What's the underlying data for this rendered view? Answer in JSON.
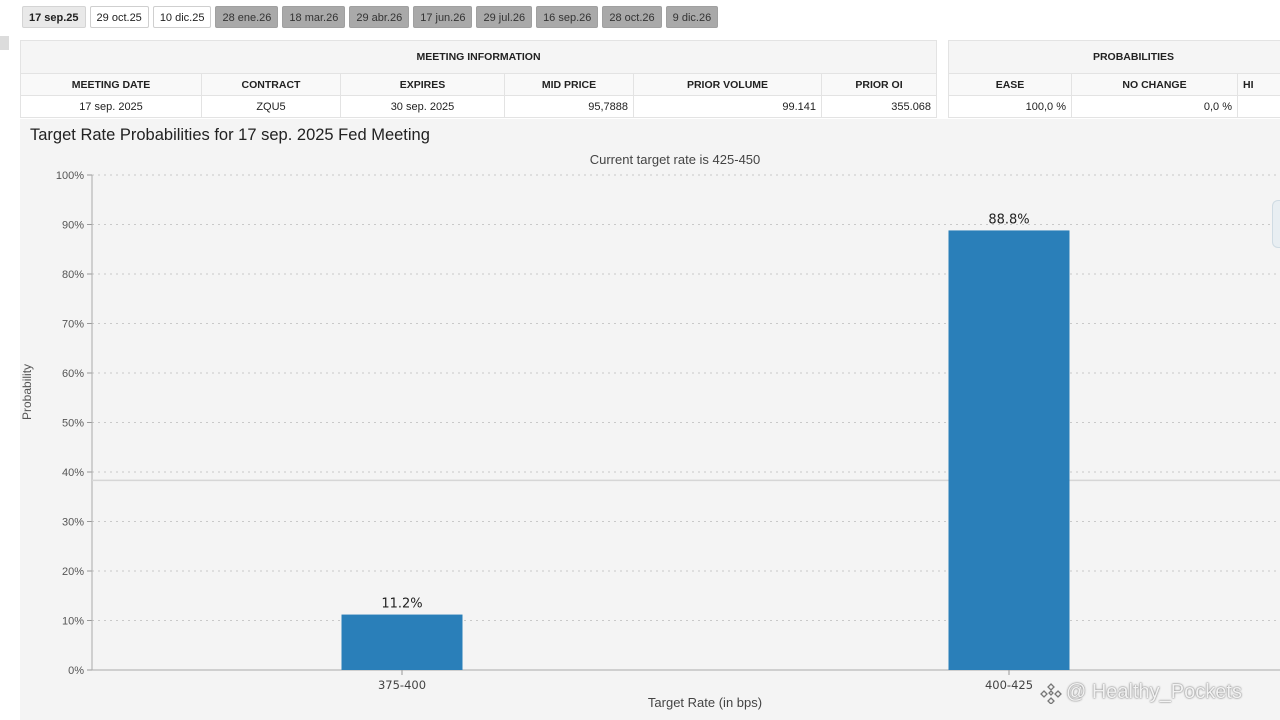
{
  "tabs": [
    {
      "label": "17 sep.25",
      "state": "active"
    },
    {
      "label": "29 oct.25",
      "state": "normal"
    },
    {
      "label": "10 dic.25",
      "state": "normal"
    },
    {
      "label": "28 ene.26",
      "state": "future"
    },
    {
      "label": "18 mar.26",
      "state": "future"
    },
    {
      "label": "29 abr.26",
      "state": "future"
    },
    {
      "label": "17 jun.26",
      "state": "future"
    },
    {
      "label": "29 jul.26",
      "state": "future"
    },
    {
      "label": "16 sep.26",
      "state": "future"
    },
    {
      "label": "28 oct.26",
      "state": "future"
    },
    {
      "label": "9 dic.26",
      "state": "future"
    }
  ],
  "meeting_info": {
    "title": "MEETING INFORMATION",
    "headers": [
      "MEETING DATE",
      "CONTRACT",
      "EXPIRES",
      "MID PRICE",
      "PRIOR VOLUME",
      "PRIOR OI"
    ],
    "row": [
      "17 sep. 2025",
      "ZQU5",
      "30 sep. 2025",
      "95,7888",
      "99.141",
      "355.068"
    ]
  },
  "probabilities": {
    "title": "PROBABILITIES",
    "headers": [
      "EASE",
      "NO CHANGE",
      "HI"
    ],
    "row": [
      "100,0 %",
      "0,0 %",
      ""
    ]
  },
  "chart_data": {
    "type": "bar",
    "title": "Target Rate Probabilities for 17 sep. 2025 Fed Meeting",
    "subtitle": "Current target rate is 425-450",
    "xlabel": "Target Rate (in bps)",
    "ylabel": "Probability",
    "categories": [
      "375-400",
      "400-425"
    ],
    "values": [
      11.2,
      88.8
    ],
    "data_labels": [
      "11.2%",
      "88.8%"
    ],
    "ylim": [
      0,
      100
    ],
    "yticks": [
      0,
      10,
      20,
      30,
      40,
      50,
      60,
      70,
      80,
      90,
      100
    ],
    "ytick_labels": [
      "0%",
      "10%",
      "20%",
      "30%",
      "40%",
      "50%",
      "60%",
      "70%",
      "80%",
      "90%",
      "100%"
    ],
    "grid": true,
    "bar_color": "#2a7fb9"
  },
  "watermark": "@ Healthy_Pockets"
}
